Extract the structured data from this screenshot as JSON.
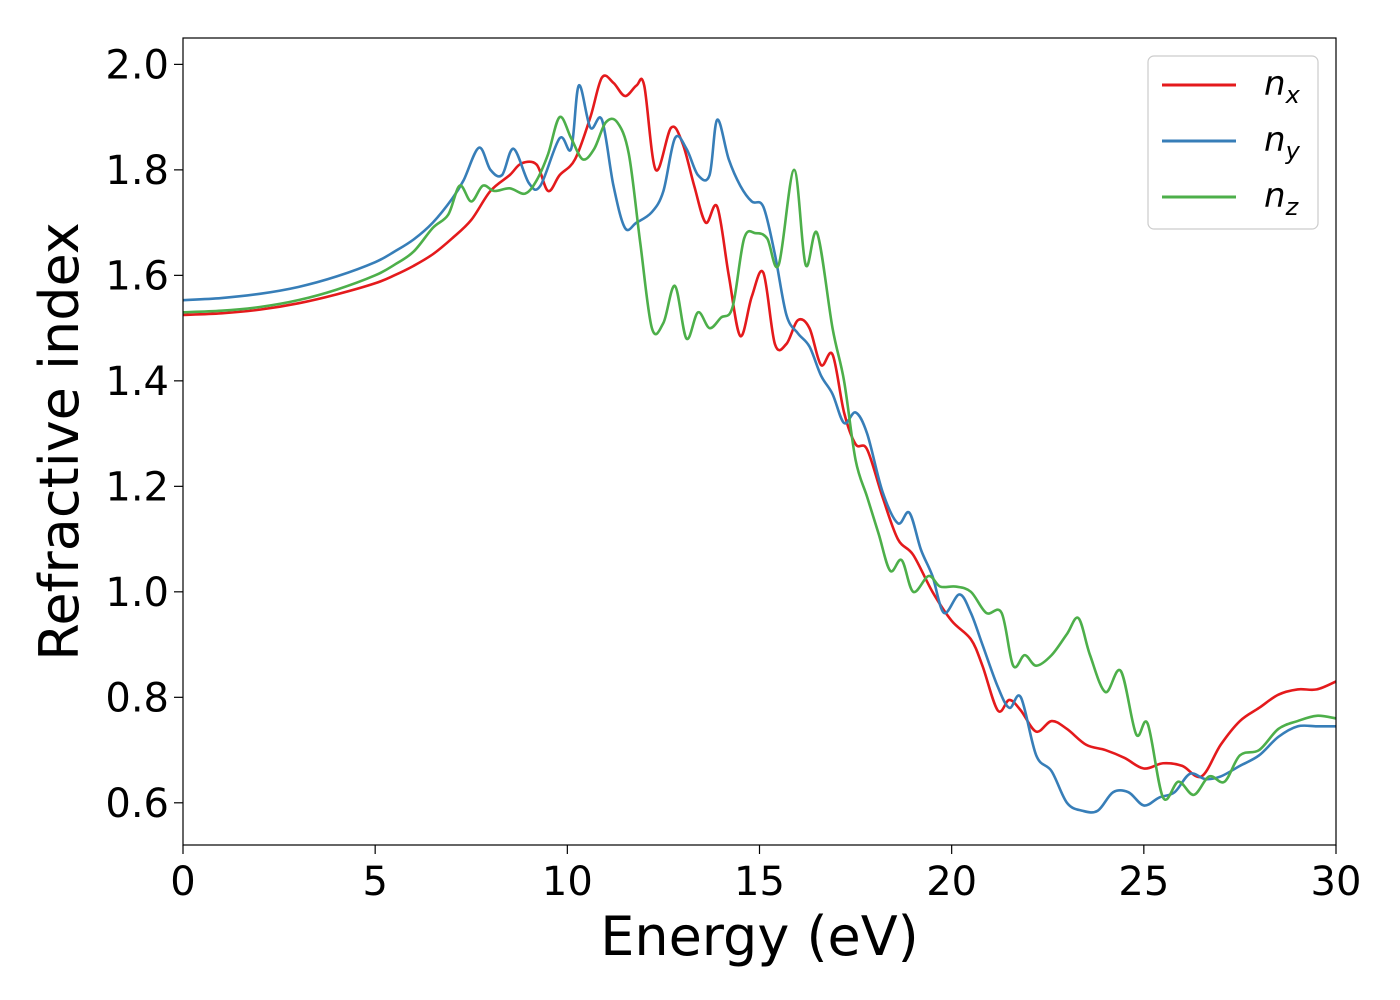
{
  "chart_data": {
    "type": "line",
    "xlabel": "Energy (eV)",
    "ylabel": "Refractive index",
    "xlim": [
      0,
      30
    ],
    "ylim": [
      0.52,
      2.05
    ],
    "xticks": [
      0,
      5,
      10,
      15,
      20,
      25,
      30
    ],
    "xtick_labels": [
      "0",
      "5",
      "10",
      "15",
      "20",
      "25",
      "30"
    ],
    "yticks": [
      0.6,
      0.8,
      1.0,
      1.2,
      1.4,
      1.6,
      1.8,
      2.0
    ],
    "ytick_labels": [
      "0.6",
      "0.8",
      "1.0",
      "1.2",
      "1.4",
      "1.6",
      "1.8",
      "2.0"
    ],
    "grid": false,
    "legend_position": "top-right",
    "series": [
      {
        "name": "n_x",
        "label_base": "n",
        "label_sub": "x",
        "color": "#e41a1c",
        "points": [
          [
            0,
            1.525
          ],
          [
            1,
            1.528
          ],
          [
            2,
            1.535
          ],
          [
            3,
            1.547
          ],
          [
            4,
            1.564
          ],
          [
            5,
            1.585
          ],
          [
            5.5,
            1.6
          ],
          [
            6,
            1.618
          ],
          [
            6.5,
            1.64
          ],
          [
            7,
            1.67
          ],
          [
            7.5,
            1.705
          ],
          [
            8,
            1.76
          ],
          [
            8.5,
            1.79
          ],
          [
            8.8,
            1.812
          ],
          [
            9.2,
            1.81
          ],
          [
            9.5,
            1.76
          ],
          [
            9.8,
            1.79
          ],
          [
            10.2,
            1.82
          ],
          [
            10.6,
            1.9
          ],
          [
            10.9,
            1.975
          ],
          [
            11.2,
            1.965
          ],
          [
            11.5,
            1.94
          ],
          [
            11.8,
            1.96
          ],
          [
            12.0,
            1.96
          ],
          [
            12.3,
            1.8
          ],
          [
            12.7,
            1.88
          ],
          [
            13.0,
            1.85
          ],
          [
            13.3,
            1.77
          ],
          [
            13.6,
            1.7
          ],
          [
            13.9,
            1.73
          ],
          [
            14.2,
            1.6
          ],
          [
            14.5,
            1.485
          ],
          [
            14.8,
            1.56
          ],
          [
            15.1,
            1.605
          ],
          [
            15.4,
            1.47
          ],
          [
            15.7,
            1.47
          ],
          [
            16.0,
            1.515
          ],
          [
            16.3,
            1.5
          ],
          [
            16.6,
            1.43
          ],
          [
            16.9,
            1.45
          ],
          [
            17.2,
            1.34
          ],
          [
            17.5,
            1.28
          ],
          [
            17.8,
            1.27
          ],
          [
            18.2,
            1.18
          ],
          [
            18.6,
            1.1
          ],
          [
            19.0,
            1.07
          ],
          [
            19.5,
            1.0
          ],
          [
            20.0,
            0.945
          ],
          [
            20.5,
            0.91
          ],
          [
            20.8,
            0.86
          ],
          [
            21.2,
            0.775
          ],
          [
            21.5,
            0.795
          ],
          [
            21.8,
            0.775
          ],
          [
            22.2,
            0.735
          ],
          [
            22.6,
            0.755
          ],
          [
            23.0,
            0.74
          ],
          [
            23.5,
            0.71
          ],
          [
            24.0,
            0.7
          ],
          [
            24.5,
            0.685
          ],
          [
            25.0,
            0.665
          ],
          [
            25.5,
            0.675
          ],
          [
            26.0,
            0.67
          ],
          [
            26.5,
            0.65
          ],
          [
            27.0,
            0.71
          ],
          [
            27.5,
            0.755
          ],
          [
            28.0,
            0.78
          ],
          [
            28.5,
            0.805
          ],
          [
            29.0,
            0.815
          ],
          [
            29.5,
            0.815
          ],
          [
            30,
            0.83
          ]
        ]
      },
      {
        "name": "n_y",
        "label_base": "n",
        "label_sub": "y",
        "color": "#377eb8",
        "points": [
          [
            0,
            1.553
          ],
          [
            1,
            1.557
          ],
          [
            2,
            1.565
          ],
          [
            3,
            1.578
          ],
          [
            4,
            1.598
          ],
          [
            5,
            1.625
          ],
          [
            5.5,
            1.645
          ],
          [
            6,
            1.668
          ],
          [
            6.5,
            1.7
          ],
          [
            7,
            1.745
          ],
          [
            7.3,
            1.78
          ],
          [
            7.7,
            1.842
          ],
          [
            8.0,
            1.8
          ],
          [
            8.3,
            1.79
          ],
          [
            8.6,
            1.84
          ],
          [
            9.0,
            1.775
          ],
          [
            9.3,
            1.77
          ],
          [
            9.8,
            1.86
          ],
          [
            10.1,
            1.84
          ],
          [
            10.3,
            1.96
          ],
          [
            10.6,
            1.88
          ],
          [
            10.9,
            1.895
          ],
          [
            11.2,
            1.77
          ],
          [
            11.5,
            1.69
          ],
          [
            11.8,
            1.7
          ],
          [
            12.2,
            1.72
          ],
          [
            12.5,
            1.76
          ],
          [
            12.8,
            1.86
          ],
          [
            13.1,
            1.84
          ],
          [
            13.4,
            1.79
          ],
          [
            13.7,
            1.79
          ],
          [
            13.9,
            1.895
          ],
          [
            14.2,
            1.82
          ],
          [
            14.5,
            1.77
          ],
          [
            14.8,
            1.74
          ],
          [
            15.1,
            1.73
          ],
          [
            15.4,
            1.64
          ],
          [
            15.7,
            1.525
          ],
          [
            16.0,
            1.49
          ],
          [
            16.3,
            1.465
          ],
          [
            16.6,
            1.41
          ],
          [
            16.9,
            1.375
          ],
          [
            17.2,
            1.32
          ],
          [
            17.5,
            1.34
          ],
          [
            17.8,
            1.3
          ],
          [
            18.2,
            1.19
          ],
          [
            18.6,
            1.13
          ],
          [
            18.9,
            1.15
          ],
          [
            19.2,
            1.08
          ],
          [
            19.5,
            1.03
          ],
          [
            19.8,
            0.96
          ],
          [
            20.2,
            0.995
          ],
          [
            20.5,
            0.96
          ],
          [
            20.8,
            0.9
          ],
          [
            21.2,
            0.82
          ],
          [
            21.5,
            0.78
          ],
          [
            21.8,
            0.8
          ],
          [
            22.2,
            0.69
          ],
          [
            22.6,
            0.66
          ],
          [
            23.0,
            0.6
          ],
          [
            23.4,
            0.585
          ],
          [
            23.8,
            0.585
          ],
          [
            24.2,
            0.62
          ],
          [
            24.6,
            0.62
          ],
          [
            25.0,
            0.595
          ],
          [
            25.4,
            0.61
          ],
          [
            25.8,
            0.62
          ],
          [
            26.2,
            0.655
          ],
          [
            26.6,
            0.645
          ],
          [
            27.0,
            0.65
          ],
          [
            27.5,
            0.67
          ],
          [
            28.0,
            0.69
          ],
          [
            28.5,
            0.725
          ],
          [
            29.0,
            0.745
          ],
          [
            29.5,
            0.745
          ],
          [
            30,
            0.745
          ]
        ]
      },
      {
        "name": "n_z",
        "label_base": "n",
        "label_sub": "z",
        "color": "#4daf4a",
        "points": [
          [
            0,
            1.53
          ],
          [
            1,
            1.533
          ],
          [
            2,
            1.54
          ],
          [
            3,
            1.553
          ],
          [
            4,
            1.573
          ],
          [
            5,
            1.6
          ],
          [
            5.5,
            1.62
          ],
          [
            6,
            1.645
          ],
          [
            6.5,
            1.69
          ],
          [
            6.9,
            1.715
          ],
          [
            7.2,
            1.77
          ],
          [
            7.5,
            1.74
          ],
          [
            7.8,
            1.77
          ],
          [
            8.1,
            1.76
          ],
          [
            8.5,
            1.765
          ],
          [
            8.9,
            1.755
          ],
          [
            9.2,
            1.78
          ],
          [
            9.5,
            1.83
          ],
          [
            9.8,
            1.9
          ],
          [
            10.1,
            1.86
          ],
          [
            10.4,
            1.82
          ],
          [
            10.7,
            1.84
          ],
          [
            11.0,
            1.89
          ],
          [
            11.3,
            1.89
          ],
          [
            11.6,
            1.83
          ],
          [
            11.9,
            1.66
          ],
          [
            12.2,
            1.5
          ],
          [
            12.5,
            1.51
          ],
          [
            12.8,
            1.58
          ],
          [
            13.1,
            1.48
          ],
          [
            13.4,
            1.53
          ],
          [
            13.7,
            1.5
          ],
          [
            14.0,
            1.52
          ],
          [
            14.3,
            1.54
          ],
          [
            14.6,
            1.67
          ],
          [
            14.9,
            1.68
          ],
          [
            15.2,
            1.67
          ],
          [
            15.5,
            1.62
          ],
          [
            15.9,
            1.8
          ],
          [
            16.2,
            1.62
          ],
          [
            16.5,
            1.68
          ],
          [
            16.9,
            1.5
          ],
          [
            17.2,
            1.4
          ],
          [
            17.5,
            1.25
          ],
          [
            17.8,
            1.18
          ],
          [
            18.1,
            1.11
          ],
          [
            18.4,
            1.04
          ],
          [
            18.7,
            1.06
          ],
          [
            19.0,
            1.0
          ],
          [
            19.4,
            1.03
          ],
          [
            19.7,
            1.01
          ],
          [
            20.1,
            1.01
          ],
          [
            20.5,
            1.0
          ],
          [
            20.9,
            0.96
          ],
          [
            21.3,
            0.96
          ],
          [
            21.6,
            0.86
          ],
          [
            21.9,
            0.88
          ],
          [
            22.2,
            0.86
          ],
          [
            22.6,
            0.88
          ],
          [
            23.0,
            0.92
          ],
          [
            23.3,
            0.95
          ],
          [
            23.6,
            0.88
          ],
          [
            24.0,
            0.81
          ],
          [
            24.4,
            0.85
          ],
          [
            24.8,
            0.73
          ],
          [
            25.1,
            0.75
          ],
          [
            25.5,
            0.61
          ],
          [
            25.9,
            0.64
          ],
          [
            26.3,
            0.615
          ],
          [
            26.7,
            0.65
          ],
          [
            27.1,
            0.64
          ],
          [
            27.5,
            0.69
          ],
          [
            28.0,
            0.7
          ],
          [
            28.5,
            0.74
          ],
          [
            29.0,
            0.755
          ],
          [
            29.5,
            0.765
          ],
          [
            30,
            0.76
          ]
        ]
      }
    ]
  }
}
